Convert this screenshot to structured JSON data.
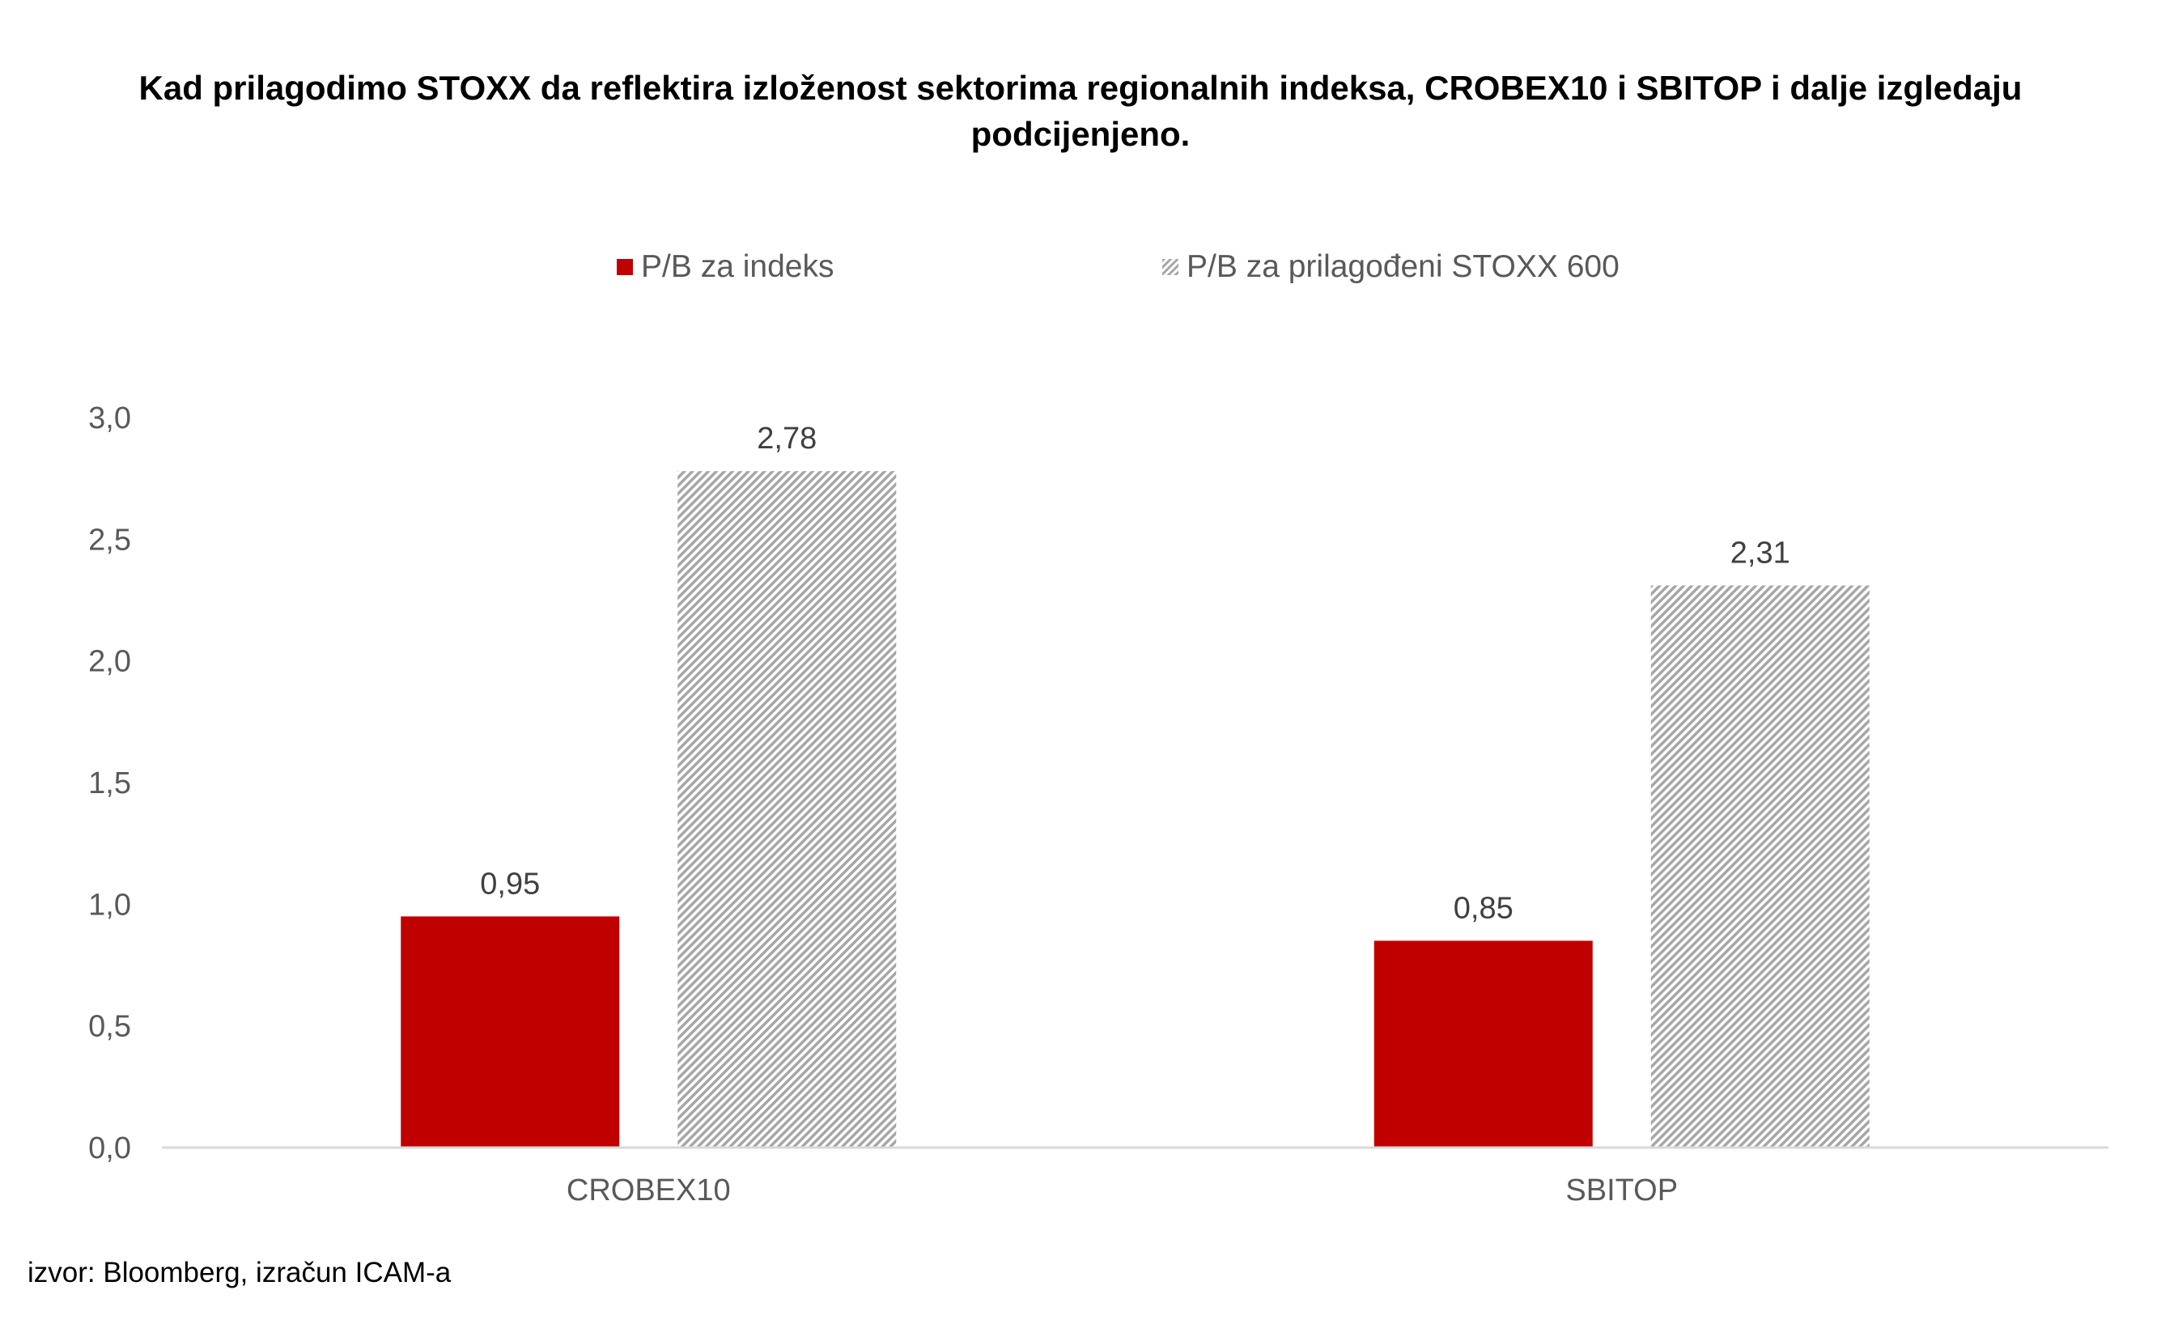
{
  "title": "Kad prilagodimo STOXX da reflektira izloženost sektorima regionalnih indeksa, CROBEX10 i SBITOP i dalje izgledaju podcijenjeno.",
  "source": "izvor: Bloomberg, izračun ICAM-a",
  "colors": {
    "series1": "#c00000",
    "series2_stripe": "#a6a6a6",
    "axis": "#d9d9d9"
  },
  "chart_data": {
    "type": "bar",
    "categories": [
      "CROBEX10",
      "SBITOP"
    ],
    "series": [
      {
        "name": "P/B za indeks",
        "values": [
          0.95,
          0.85
        ],
        "labels": [
          "0,95",
          "0,85"
        ],
        "fill": "solid"
      },
      {
        "name": "P/B za prilagođeni STOXX 600",
        "values": [
          2.78,
          2.31
        ],
        "labels": [
          "2,78",
          "2,31"
        ],
        "fill": "diagonal-stripes"
      }
    ],
    "ylim": [
      0,
      3.0
    ],
    "yticks": [
      0,
      0.5,
      1.0,
      1.5,
      2.0,
      2.5,
      3.0
    ],
    "ytick_labels": [
      "0,0",
      "0,5",
      "1,0",
      "1,5",
      "2,0",
      "2,5",
      "3,0"
    ],
    "grid": false,
    "legend_position": "top"
  }
}
